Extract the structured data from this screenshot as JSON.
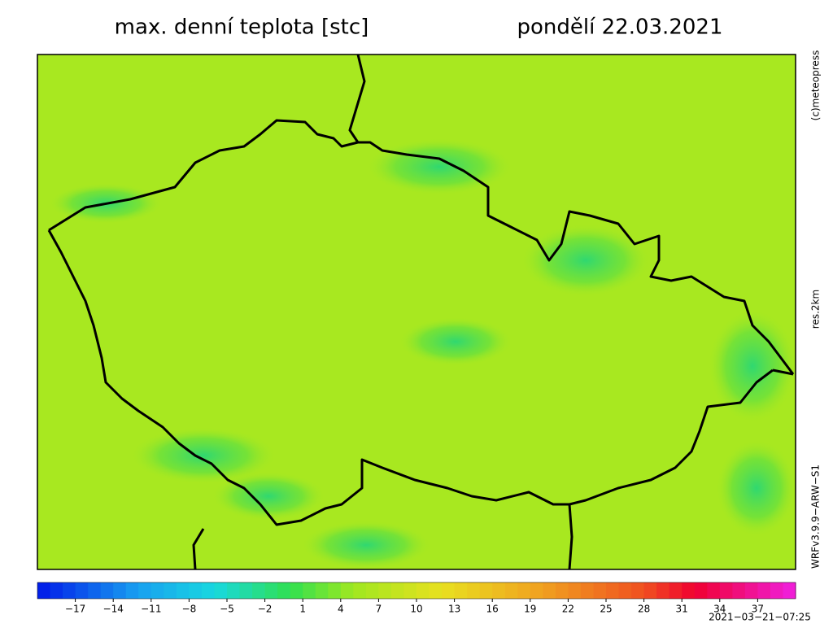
{
  "header": {
    "title": "max. denní teplota [stc]",
    "date": "pondělí 22.03.2021"
  },
  "side_labels": {
    "copyright": "(c)meteopress",
    "resolution": "res.2km",
    "model": "WRFv3.9.9−ARW−S1"
  },
  "timestamp": "2021−03−21−07:25",
  "colorbar": {
    "lim": [
      -20,
      40
    ],
    "ticks": [
      {
        "value": -17,
        "label": "−17"
      },
      {
        "value": -14,
        "label": "−14"
      },
      {
        "value": -11,
        "label": "−11"
      },
      {
        "value": -8,
        "label": "−8"
      },
      {
        "value": -5,
        "label": "−5"
      },
      {
        "value": -2,
        "label": "−2"
      },
      1,
      4,
      7,
      10,
      13,
      16,
      19,
      22,
      25,
      28,
      31,
      34,
      37
    ],
    "stops": [
      {
        "value": -20,
        "color": "#0018e8"
      },
      {
        "value": -12,
        "color": "#18a0f0"
      },
      {
        "value": -6,
        "color": "#18d8e0"
      },
      {
        "value": 0,
        "color": "#30e050"
      },
      {
        "value": 5,
        "color": "#a0e820"
      },
      {
        "value": 12,
        "color": "#e8e020"
      },
      {
        "value": 20,
        "color": "#f0a020"
      },
      {
        "value": 28,
        "color": "#f05020"
      },
      {
        "value": 32,
        "color": "#f00030"
      },
      {
        "value": 40,
        "color": "#f020e0"
      }
    ]
  }
}
